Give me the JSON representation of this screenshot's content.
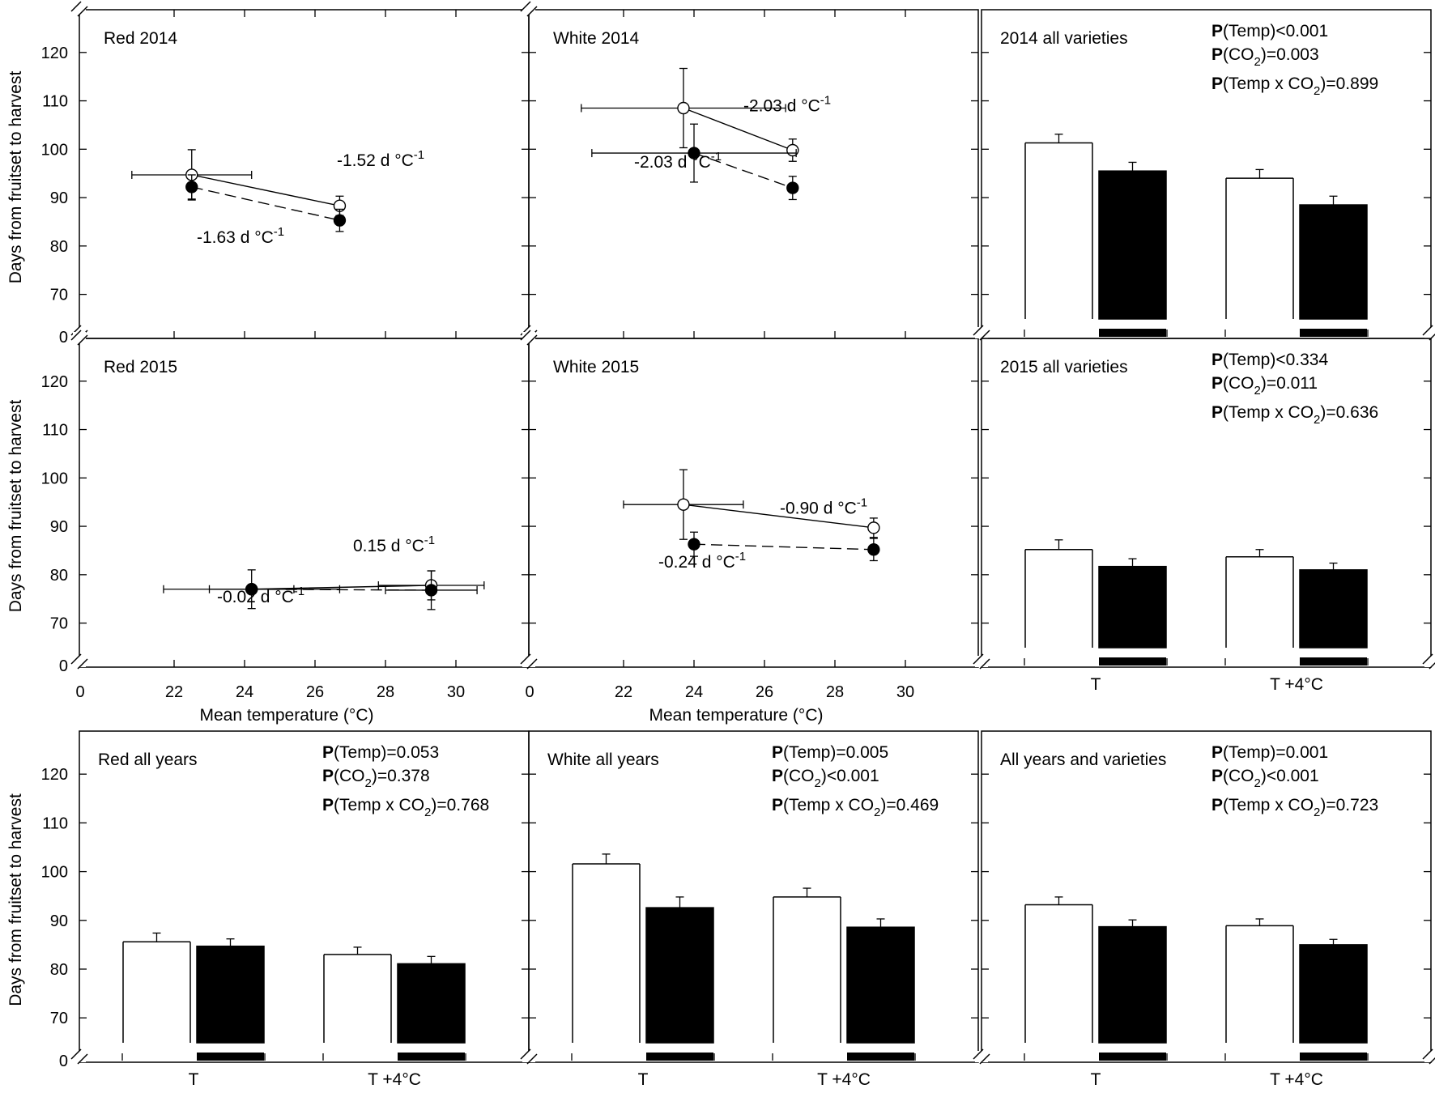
{
  "chart_data": {
    "type": "multi-panel",
    "y_axis_title": "Days from fruitset to harvest",
    "x_axis_title": "Mean temperature (°C)",
    "x_ticks": [
      "0",
      "22",
      "24",
      "26",
      "28",
      "30"
    ],
    "y_ticks": [
      "0",
      "70",
      "80",
      "90",
      "100",
      "110",
      "120"
    ],
    "bar_categories": [
      "T",
      "T +4°C"
    ],
    "scatter_panels": [
      {
        "title": "Red 2014",
        "series": [
          {
            "name": "open",
            "points": [
              {
                "x": 22.5,
                "y": 94.7,
                "xerr": 1.7,
                "yerr": 5.2
              },
              {
                "x": 26.7,
                "y": 88.3,
                "xerr": 0,
                "yerr": 2.0
              }
            ]
          },
          {
            "name": "filled",
            "points": [
              {
                "x": 22.5,
                "y": 92.2,
                "xerr": 0,
                "yerr": 2.5
              },
              {
                "x": 26.7,
                "y": 85.3,
                "xerr": 0,
                "yerr": 2.3
              }
            ]
          }
        ],
        "slopes": [
          {
            "text": "-1.52 d °C",
            "sup": "-1"
          },
          {
            "text": "-1.63 d °C",
            "sup": "-1"
          }
        ]
      },
      {
        "title": "White 2014",
        "series": [
          {
            "name": "open",
            "points": [
              {
                "x": 23.7,
                "y": 108.5,
                "xerr": 2.9,
                "yerr": 8.2
              },
              {
                "x": 26.8,
                "y": 99.8,
                "xerr": 0,
                "yerr": 2.3
              }
            ]
          },
          {
            "name": "filled",
            "points": [
              {
                "x": 24.0,
                "y": 99.2,
                "xerr": 2.9,
                "yerr": 6.0
              },
              {
                "x": 26.8,
                "y": 92.0,
                "xerr": 0,
                "yerr": 2.4
              }
            ]
          }
        ],
        "slopes": [
          {
            "text": "-2.03 d °C",
            "sup": "-1"
          },
          {
            "text": "-2.03 d °C",
            "sup": "-1"
          }
        ]
      },
      {
        "title": "Red 2015",
        "series": [
          {
            "name": "open",
            "points": [
              {
                "x": 24.2,
                "y": 77.0,
                "xerr": 2.5,
                "yerr": 4.0
              },
              {
                "x": 29.3,
                "y": 77.8,
                "xerr": 1.5,
                "yerr": 3.0
              }
            ]
          },
          {
            "name": "filled",
            "points": [
              {
                "x": 24.2,
                "y": 77.0,
                "xerr": 1.2,
                "yerr": 0
              },
              {
                "x": 29.3,
                "y": 76.8,
                "xerr": 1.3,
                "yerr": 4.0
              }
            ]
          }
        ],
        "slopes": [
          {
            "text": "0.15 d °C",
            "sup": "-1"
          },
          {
            "text": "-0.02 d °C",
            "sup": "-1"
          }
        ]
      },
      {
        "title": "White 2015",
        "series": [
          {
            "name": "open",
            "points": [
              {
                "x": 23.7,
                "y": 94.5,
                "xerr": 1.7,
                "yerr": 7.2
              },
              {
                "x": 29.1,
                "y": 89.7,
                "xerr": 0,
                "yerr": 2.0
              }
            ]
          },
          {
            "name": "filled",
            "points": [
              {
                "x": 24.0,
                "y": 86.3,
                "xerr": 0,
                "yerr": 2.5
              },
              {
                "x": 29.1,
                "y": 85.2,
                "xerr": 0,
                "yerr": 2.3
              }
            ]
          }
        ],
        "slopes": [
          {
            "text": "-0.90 d °C",
            "sup": "-1"
          },
          {
            "text": "-0.24 d °C",
            "sup": "-1"
          }
        ]
      }
    ],
    "bar_panels": [
      {
        "title": "2014 all varieties",
        "series": [
          {
            "name": "open",
            "values": [
              101.3,
              94.0
            ],
            "errors": [
              1.8,
              1.8
            ]
          },
          {
            "name": "filled",
            "values": [
              95.5,
              88.5
            ],
            "errors": [
              1.8,
              1.8
            ]
          }
        ],
        "stats": [
          {
            "bold": "P",
            "pre": "(Temp)<0.001",
            "sub": "",
            "post": ""
          },
          {
            "bold": "P",
            "pre": "(CO",
            "sub": "2",
            "post": ")=0.003"
          },
          {
            "bold": "P",
            "pre": "(Temp x CO",
            "sub": "2",
            "post": ")=0.899"
          }
        ]
      },
      {
        "title": "2015 all varieties",
        "series": [
          {
            "name": "open",
            "values": [
              85.2,
              83.7
            ],
            "errors": [
              2.0,
              1.5
            ]
          },
          {
            "name": "filled",
            "values": [
              81.7,
              81.0
            ],
            "errors": [
              1.6,
              1.4
            ]
          }
        ],
        "stats": [
          {
            "bold": "P",
            "pre": "(Temp)<0.334",
            "sub": "",
            "post": ""
          },
          {
            "bold": "P",
            "pre": "(CO",
            "sub": "2",
            "post": ")=0.011"
          },
          {
            "bold": "P",
            "pre": "(Temp x CO",
            "sub": "2",
            "post": ")=0.636"
          }
        ]
      },
      {
        "title": "Red all years",
        "series": [
          {
            "name": "open",
            "values": [
              85.6,
              83.0
            ],
            "errors": [
              1.8,
              1.5
            ]
          },
          {
            "name": "filled",
            "values": [
              84.7,
              81.1
            ],
            "errors": [
              1.5,
              1.5
            ]
          }
        ],
        "stats": [
          {
            "bold": "P",
            "pre": "(Temp)=0.053",
            "sub": "",
            "post": ""
          },
          {
            "bold": "P",
            "pre": "(CO",
            "sub": "2",
            "post": ")=0.378"
          },
          {
            "bold": "P",
            "pre": "(Temp x CO",
            "sub": "2",
            "post": ")=0.768"
          }
        ]
      },
      {
        "title": "White all years",
        "series": [
          {
            "name": "open",
            "values": [
              101.6,
              94.8
            ],
            "errors": [
              2.0,
              1.8
            ]
          },
          {
            "name": "filled",
            "values": [
              92.6,
              88.6
            ],
            "errors": [
              2.2,
              1.7
            ]
          }
        ],
        "stats": [
          {
            "bold": "P",
            "pre": "(Temp)=0.005",
            "sub": "",
            "post": ""
          },
          {
            "bold": "P",
            "pre": "(CO",
            "sub": "2",
            "post": ")<0.001"
          },
          {
            "bold": "P",
            "pre": "(Temp x CO",
            "sub": "2",
            "post": ")=0.469"
          }
        ]
      },
      {
        "title": "All years and varieties",
        "series": [
          {
            "name": "open",
            "values": [
              93.2,
              88.9
            ],
            "errors": [
              1.6,
              1.4
            ]
          },
          {
            "name": "filled",
            "values": [
              88.7,
              85.0
            ],
            "errors": [
              1.4,
              1.1
            ]
          }
        ],
        "stats": [
          {
            "bold": "P",
            "pre": "(Temp)=0.001",
            "sub": "",
            "post": ""
          },
          {
            "bold": "P",
            "pre": "(CO",
            "sub": "2",
            "post": ")<0.001"
          },
          {
            "bold": "P",
            "pre": "(Temp x CO",
            "sub": "2",
            "post": ")=0.723"
          }
        ]
      }
    ]
  }
}
